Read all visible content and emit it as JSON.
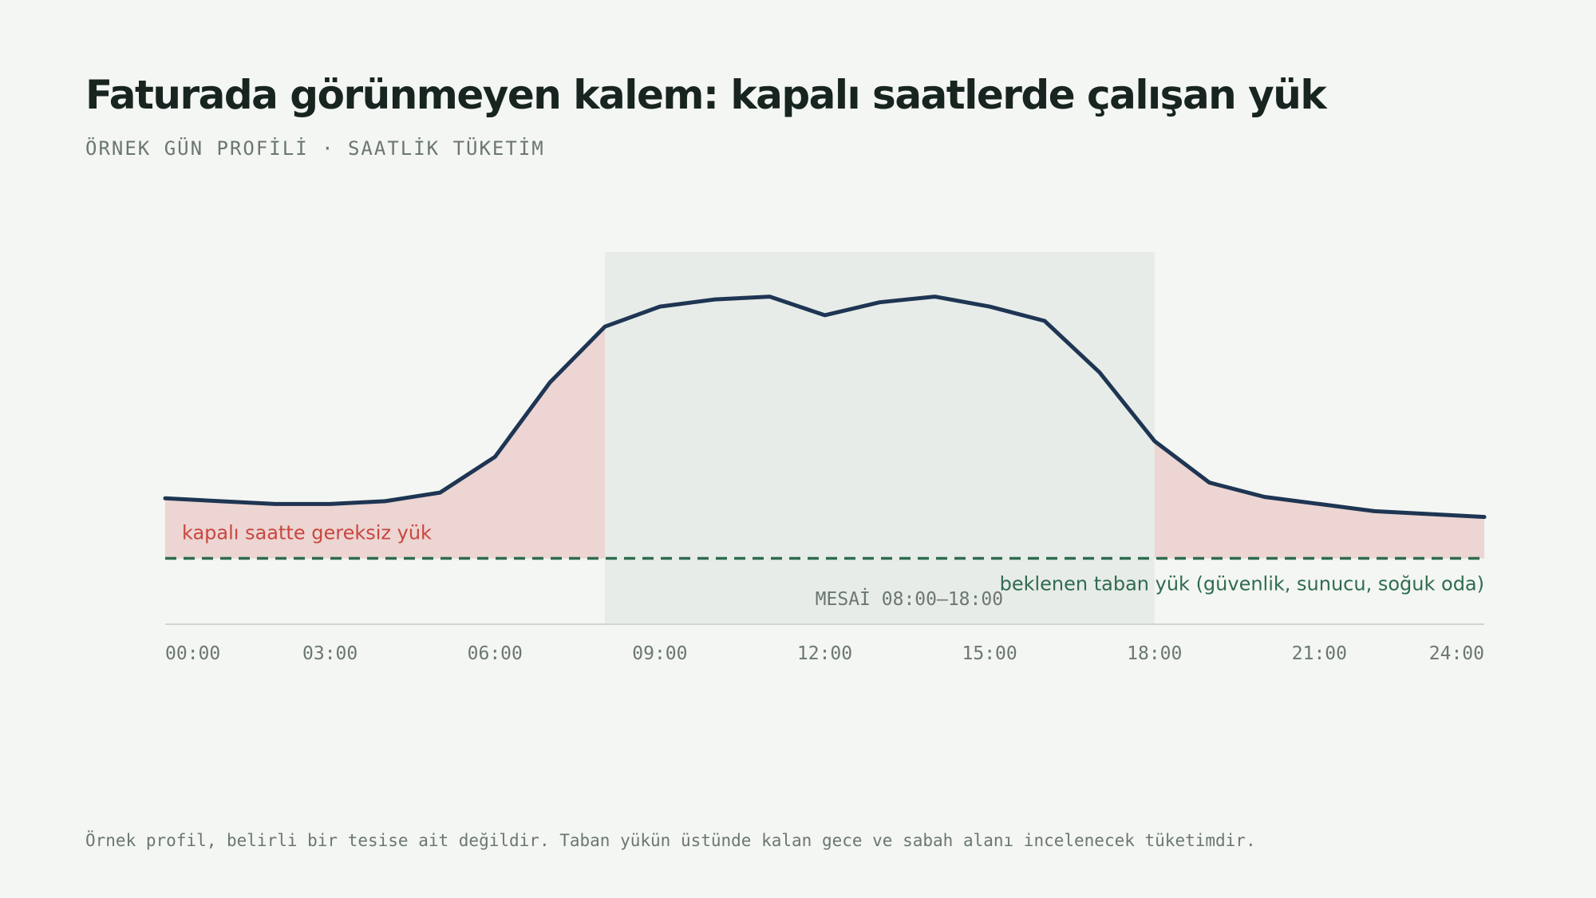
{
  "header": {
    "title": "Faturada görünmeyen kalem: kapalı saatlerde çalışan yük",
    "subtitle": "ÖRNEK GÜN PROFİLİ · SAATLİK TÜKETİM"
  },
  "footnote": "Örnek profil, belirli bir tesise ait değildir. Taban yükün üstünde kalan gece ve sabah alanı incelenecek tüketimdir.",
  "chart_data": {
    "type": "line",
    "x": [
      0,
      1,
      2,
      3,
      4,
      5,
      6,
      7,
      8,
      9,
      10,
      11,
      12,
      13,
      14,
      15,
      16,
      17,
      18,
      19,
      20,
      21,
      22,
      23,
      24
    ],
    "series": [
      {
        "values": [
          88,
          86,
          84,
          84,
          86,
          92,
          117,
          169,
          208,
          222,
          227,
          229,
          216,
          225,
          229,
          222,
          212,
          176,
          128,
          99,
          89,
          84,
          79,
          77,
          75
        ]
      }
    ],
    "baseline": {
      "value": 46,
      "label": "beklenen taban yük (güvenlik, sunucu, soğuk oda)"
    },
    "business_hours": {
      "start": 8,
      "end": 18,
      "label": "MESAİ 08:00–18:00"
    },
    "waste_label": "kapalı saatte gereksiz yük",
    "x_ticks": [
      0,
      3,
      6,
      9,
      12,
      15,
      18,
      21,
      24
    ],
    "x_tick_labels": [
      "00:00",
      "03:00",
      "06:00",
      "09:00",
      "12:00",
      "15:00",
      "18:00",
      "21:00",
      "24:00"
    ],
    "xlim": [
      0,
      24
    ],
    "ylim": [
      0,
      260
    ],
    "grid": false,
    "colors": {
      "line": "#1e3553",
      "waste_fill": "#ecd5d2",
      "business_band": "#e7ece8",
      "baseline": "#2f6b4f",
      "waste_label": "#c9463f",
      "axis": "#cfd7d1"
    }
  }
}
